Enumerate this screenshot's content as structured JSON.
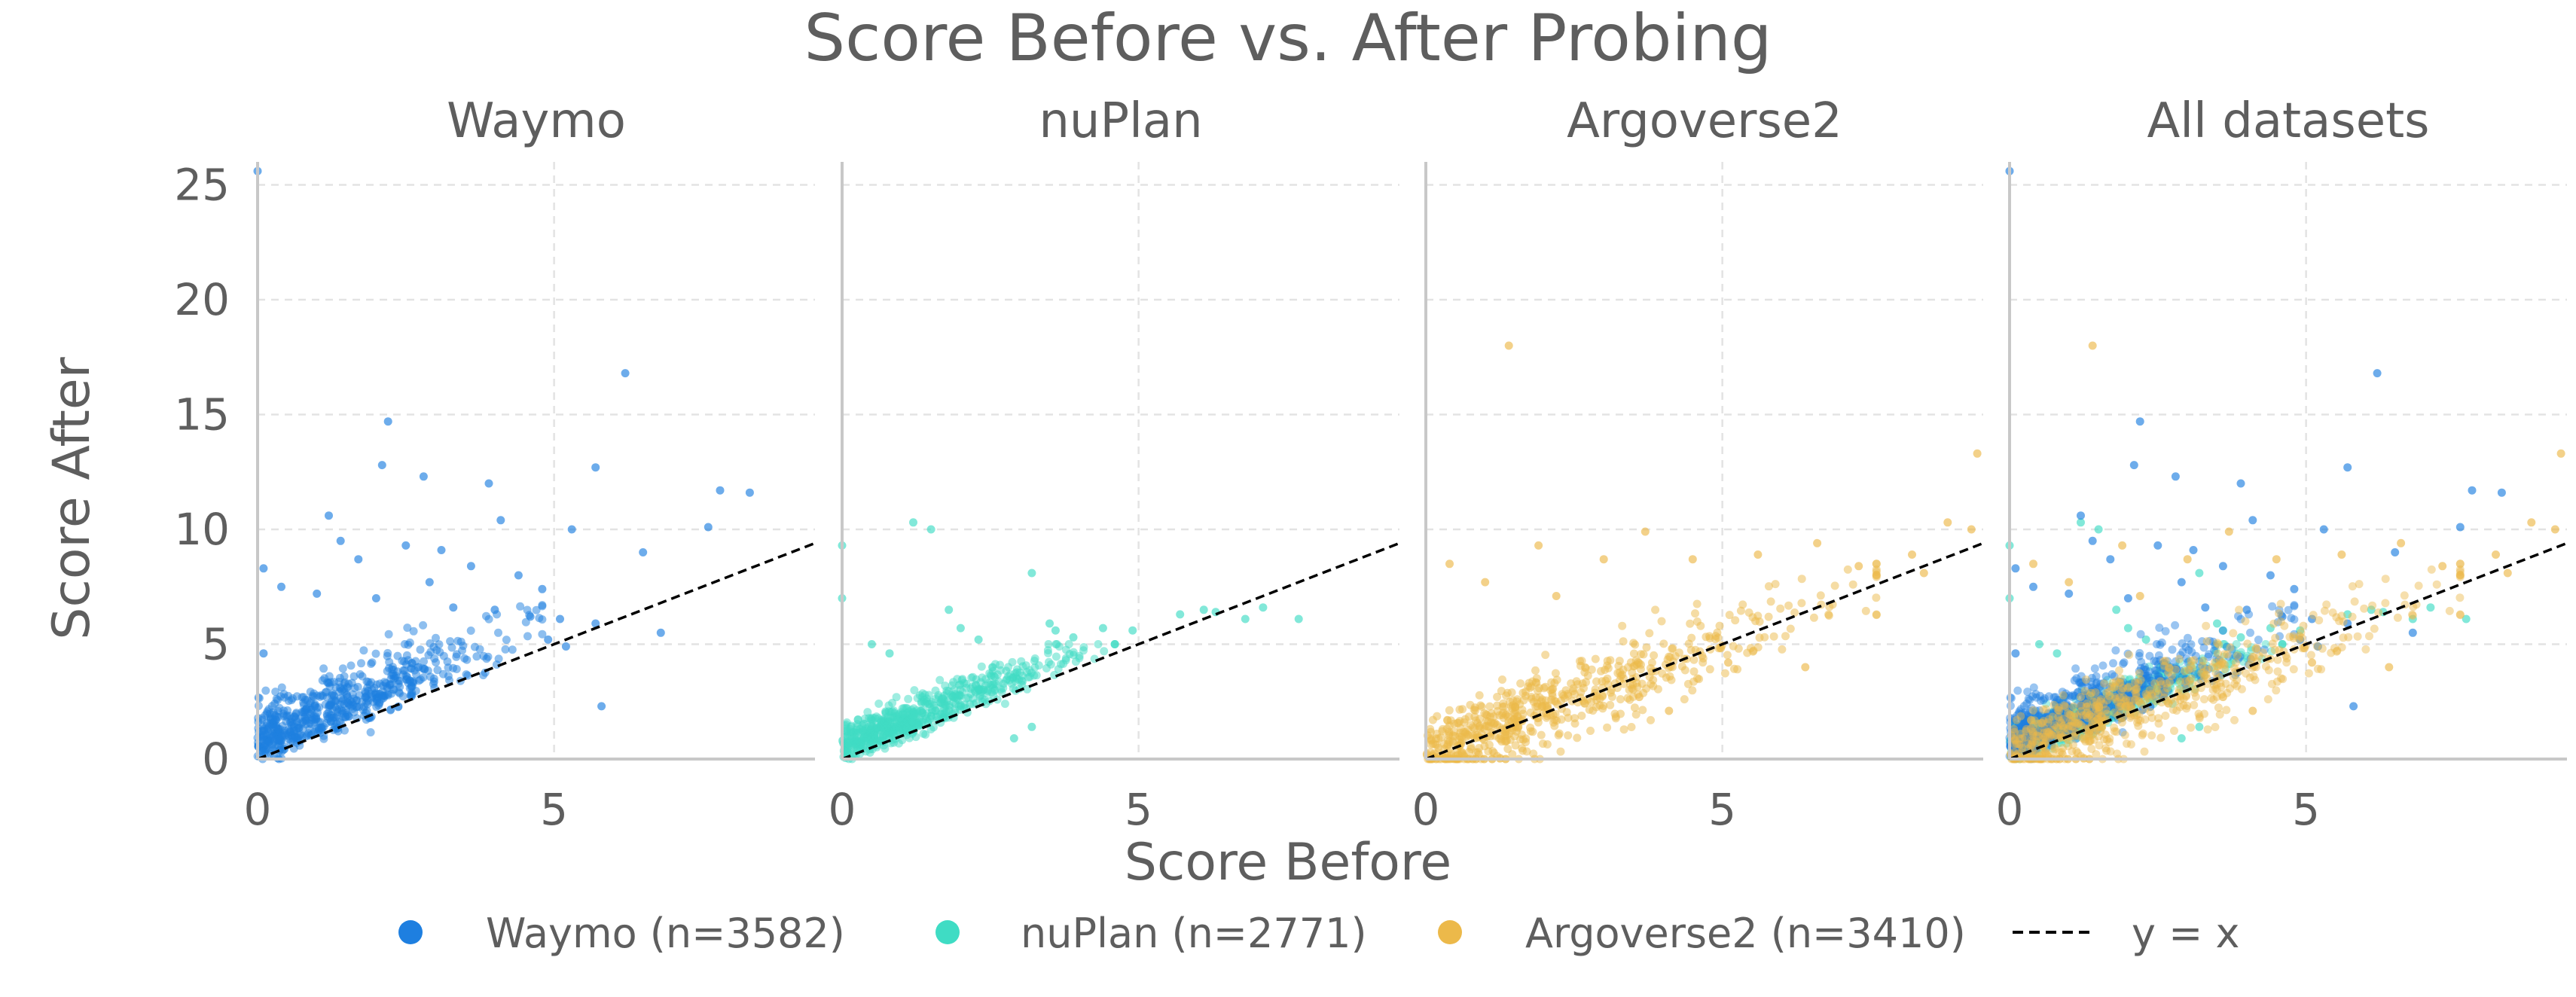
{
  "chart_data": {
    "type": "scatter",
    "title": "Score Before vs. After Probing",
    "xlabel": "Score Before",
    "ylabel": "Score After",
    "xlim": [
      0,
      9.4
    ],
    "ylim": [
      0,
      26
    ],
    "x_ticks": [
      0,
      5
    ],
    "y_ticks": [
      0,
      5,
      10,
      15,
      20,
      25
    ],
    "grid": true,
    "legend_position": "bottom",
    "reference_line": {
      "label": "y = x",
      "style": "dashed",
      "color": "#000000"
    },
    "panels": [
      {
        "title": "Waymo",
        "series": [
          "Waymo"
        ]
      },
      {
        "title": "nuPlan",
        "series": [
          "nuPlan"
        ]
      },
      {
        "title": "Argoverse2",
        "series": [
          "Argoverse2"
        ]
      },
      {
        "title": "All datasets",
        "series": [
          "Waymo",
          "nuPlan",
          "Argoverse2"
        ]
      }
    ],
    "series": [
      {
        "name": "Waymo",
        "legend_label": "Waymo (n=3582)",
        "n": 3582,
        "color": "#1e7fe0",
        "points": [
          [
            0.0,
            25.6
          ],
          [
            6.2,
            16.8
          ],
          [
            2.2,
            14.7
          ],
          [
            2.1,
            12.8
          ],
          [
            5.7,
            12.7
          ],
          [
            2.8,
            12.3
          ],
          [
            3.9,
            12.0
          ],
          [
            7.8,
            11.7
          ],
          [
            8.3,
            11.6
          ],
          [
            1.2,
            10.6
          ],
          [
            4.1,
            10.4
          ],
          [
            7.6,
            10.1
          ],
          [
            5.3,
            10.0
          ],
          [
            1.4,
            9.5
          ],
          [
            2.5,
            9.3
          ],
          [
            3.1,
            9.1
          ],
          [
            6.5,
            9.0
          ],
          [
            0.1,
            8.3
          ],
          [
            1.7,
            8.7
          ],
          [
            3.6,
            8.4
          ],
          [
            4.4,
            8.0
          ],
          [
            0.4,
            7.5
          ],
          [
            1.0,
            7.2
          ],
          [
            2.0,
            7.0
          ],
          [
            2.9,
            7.7
          ],
          [
            4.8,
            7.4
          ],
          [
            3.3,
            6.6
          ],
          [
            4.0,
            6.5
          ],
          [
            4.6,
            6.2
          ],
          [
            5.1,
            6.1
          ],
          [
            5.7,
            5.9
          ],
          [
            4.9,
            5.2
          ],
          [
            5.2,
            4.9
          ],
          [
            0.1,
            4.6
          ],
          [
            5.8,
            2.3
          ],
          [
            6.8,
            5.5
          ]
        ],
        "cloud": {
          "x_range": [
            0,
            4.8
          ],
          "y_range": [
            0,
            7.5
          ],
          "trend": "above y = x"
        }
      },
      {
        "name": "nuPlan",
        "legend_label": "nuPlan (n=2771)",
        "n": 2771,
        "color": "#3fdcc4",
        "points": [
          [
            1.2,
            10.3
          ],
          [
            1.5,
            10.0
          ],
          [
            0.0,
            9.3
          ],
          [
            3.2,
            8.1
          ],
          [
            0.0,
            7.0
          ],
          [
            1.8,
            6.5
          ],
          [
            2.0,
            5.7
          ],
          [
            2.3,
            5.2
          ],
          [
            3.5,
            5.9
          ],
          [
            3.6,
            5.6
          ],
          [
            3.9,
            5.3
          ],
          [
            4.4,
            5.7
          ],
          [
            4.9,
            5.6
          ],
          [
            5.7,
            6.3
          ],
          [
            6.1,
            6.5
          ],
          [
            6.3,
            6.4
          ],
          [
            6.8,
            6.1
          ],
          [
            7.1,
            6.6
          ],
          [
            7.7,
            6.1
          ],
          [
            0.5,
            5.0
          ],
          [
            0.8,
            4.6
          ],
          [
            0.2,
            0.8
          ],
          [
            2.9,
            0.9
          ],
          [
            3.2,
            1.4
          ]
        ],
        "cloud": {
          "x_range": [
            0,
            4.6
          ],
          "y_range": [
            0,
            5
          ],
          "trend": "above y = x"
        }
      },
      {
        "name": "Argoverse2",
        "legend_label": "Argoverse2 (n=3410)",
        "n": 3410,
        "color": "#ecb94a",
        "points": [
          [
            1.4,
            18.0
          ],
          [
            9.3,
            13.3
          ],
          [
            1.9,
            9.3
          ],
          [
            3.0,
            8.7
          ],
          [
            3.7,
            9.9
          ],
          [
            6.6,
            9.4
          ],
          [
            8.4,
            8.1
          ],
          [
            8.8,
            10.3
          ],
          [
            9.2,
            10.0
          ],
          [
            0.4,
            8.5
          ],
          [
            1.0,
            7.7
          ],
          [
            2.2,
            7.1
          ],
          [
            4.5,
            8.7
          ],
          [
            5.6,
            8.9
          ],
          [
            7.3,
            8.4
          ],
          [
            7.6,
            8.0
          ],
          [
            8.2,
            8.9
          ],
          [
            5.1,
            4.2
          ],
          [
            6.4,
            4.0
          ],
          [
            4.1,
            2.1
          ],
          [
            3.6,
            2.7
          ]
        ],
        "cloud": {
          "x_range": [
            0,
            7.6
          ],
          "y_range": [
            0,
            8.5
          ],
          "trend": "along y = x"
        }
      }
    ]
  }
}
